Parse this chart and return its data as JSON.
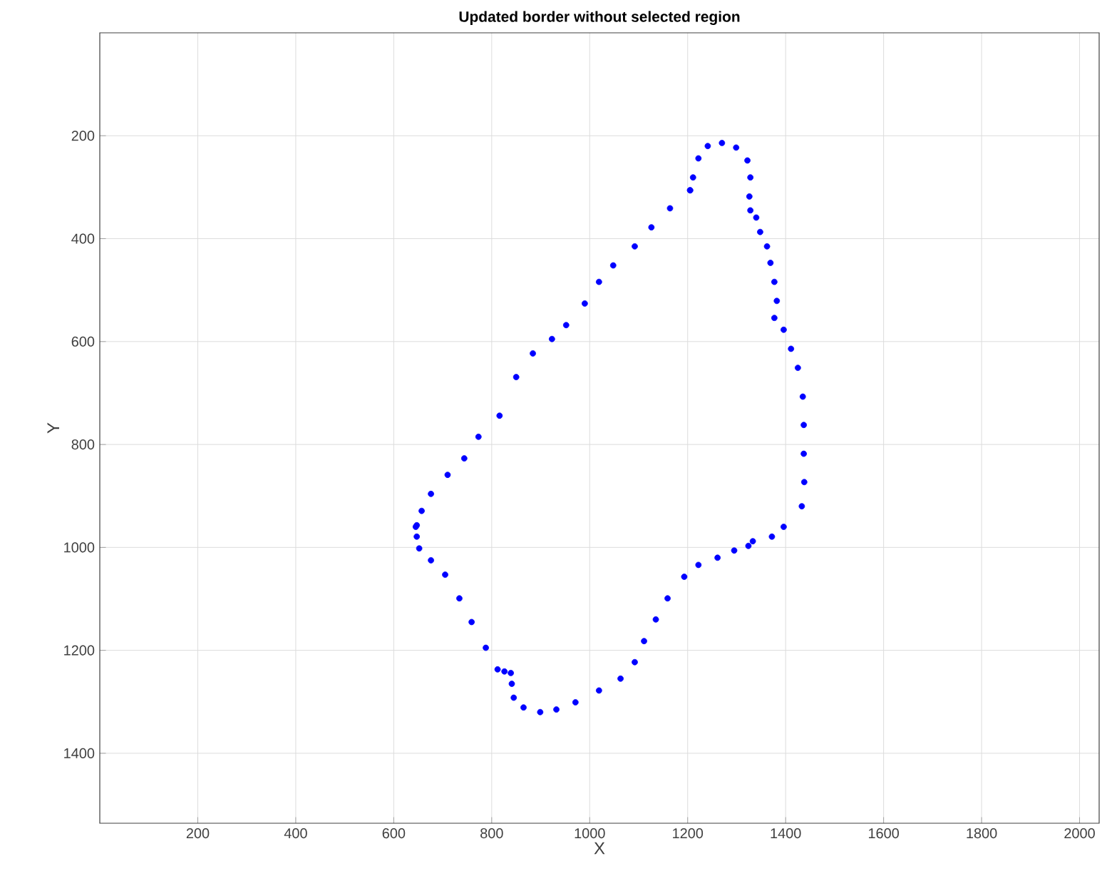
{
  "chart_data": {
    "type": "scatter",
    "title": "Updated border without selected region",
    "xlabel": "X",
    "ylabel": "Y",
    "xlim": [
      0,
      2040
    ],
    "ylim": [
      1536,
      0
    ],
    "xticks": [
      200,
      400,
      600,
      800,
      1000,
      1200,
      1400,
      1600,
      1800,
      2000
    ],
    "yticks": [
      200,
      400,
      600,
      800,
      1000,
      1200,
      1400
    ],
    "grid": true,
    "series": [
      {
        "color": "#0000ff",
        "x": [
          1205,
          1211,
          1222,
          1241,
          1270,
          1299,
          1322,
          1328,
          1326,
          1328,
          1340,
          1348,
          1362,
          1369,
          1377,
          1382,
          1377,
          1396,
          1411,
          1425,
          1435,
          1437,
          1437,
          1438,
          1433,
          1396,
          1372,
          1333,
          1324,
          1295,
          1261,
          1222,
          1193,
          1159,
          1135,
          1111,
          1092,
          1063,
          1019,
          971,
          932,
          899,
          865,
          845,
          841,
          839,
          826,
          812,
          788,
          759,
          734,
          705,
          676,
          652,
          647,
          645,
          647,
          657,
          676,
          710,
          744,
          773,
          816,
          850,
          884,
          923,
          952,
          990,
          1019,
          1048,
          1092,
          1126,
          1164,
          1205
        ],
        "values": [
          306,
          281,
          244,
          220,
          214,
          223,
          248,
          281,
          318,
          345,
          359,
          387,
          415,
          447,
          484,
          521,
          554,
          577,
          614,
          651,
          707,
          762,
          818,
          873,
          920,
          960,
          979,
          988,
          997,
          1006,
          1020,
          1034,
          1057,
          1099,
          1140,
          1182,
          1223,
          1255,
          1278,
          1301,
          1315,
          1320,
          1311,
          1292,
          1265,
          1244,
          1241,
          1237,
          1195,
          1145,
          1099,
          1053,
          1025,
          1002,
          979,
          960,
          957,
          929,
          896,
          859,
          827,
          785,
          744,
          669,
          623,
          595,
          568,
          526,
          484,
          452,
          415,
          378,
          341,
          306
        ]
      }
    ]
  }
}
